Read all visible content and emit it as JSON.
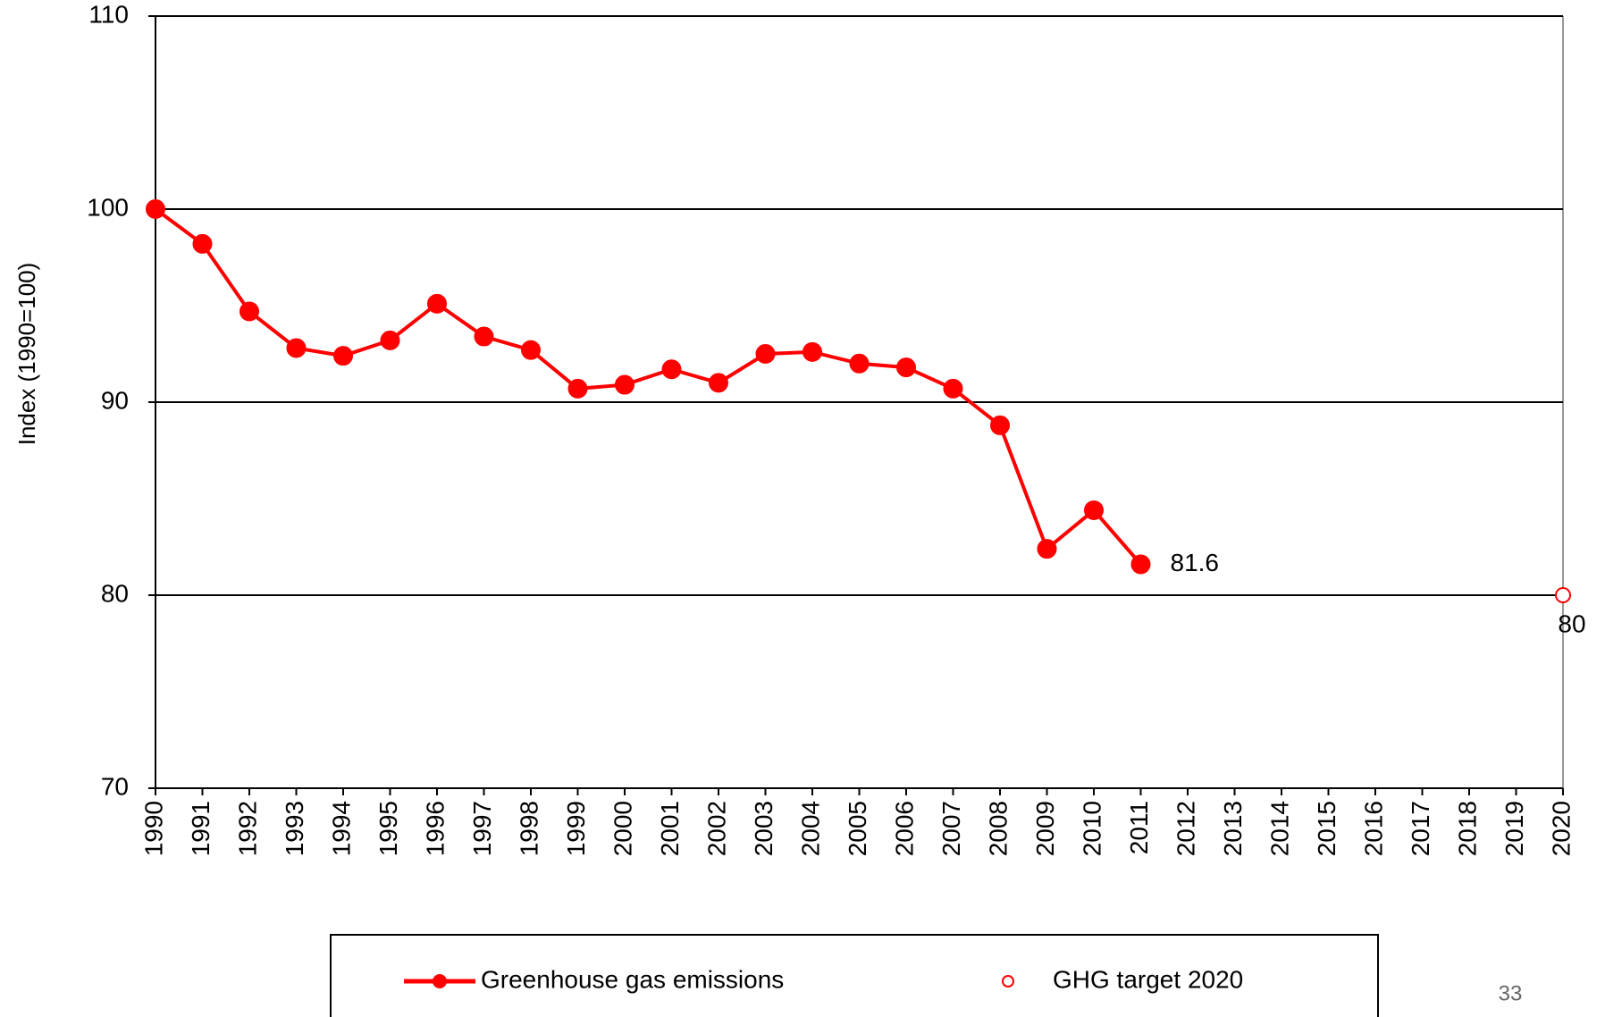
{
  "chart_data": {
    "type": "line",
    "y_axis_label": "Index (1990=100)",
    "xlim": [
      1990,
      2020
    ],
    "xticks": [
      1990,
      1991,
      1992,
      1993,
      1994,
      1995,
      1996,
      1997,
      1998,
      1999,
      2000,
      2001,
      2002,
      2003,
      2004,
      2005,
      2006,
      2007,
      2008,
      2009,
      2010,
      2011,
      2012,
      2013,
      2014,
      2015,
      2016,
      2017,
      2018,
      2019,
      2020
    ],
    "ylim": [
      70,
      110
    ],
    "yticks": [
      70,
      80,
      90,
      100,
      110
    ],
    "grid": true,
    "legend": "bottom",
    "series": [
      {
        "name": "Greenhouse gas emissions",
        "color": "#ff0000",
        "marker": "filled",
        "x": [
          1990,
          1991,
          1992,
          1993,
          1994,
          1995,
          1996,
          1997,
          1998,
          1999,
          2000,
          2001,
          2002,
          2003,
          2004,
          2005,
          2006,
          2007,
          2008,
          2009,
          2010,
          2011
        ],
        "values": [
          100,
          98.2,
          94.7,
          92.8,
          92.4,
          93.2,
          95.1,
          93.4,
          92.7,
          90.7,
          90.9,
          91.7,
          91.0,
          92.5,
          92.6,
          92.0,
          91.8,
          90.7,
          88.8,
          82.4,
          84.4,
          81.6
        ],
        "labeled_point": 21
      },
      {
        "name": "GHG target 2020",
        "color": "#ff0000",
        "marker": "hollow",
        "x": [
          2020
        ],
        "values": [
          80
        ],
        "labeled_point": 0
      }
    ],
    "page_number": "33"
  }
}
